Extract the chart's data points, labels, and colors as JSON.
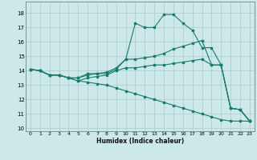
{
  "xlabel": "Humidex (Indice chaleur)",
  "ylabel": "",
  "bg_color": "#cce8e8",
  "grid_color": "#aacccc",
  "line_color": "#1a7a6e",
  "xlim": [
    -0.5,
    23.5
  ],
  "ylim": [
    9.8,
    18.8
  ],
  "yticks": [
    10,
    11,
    12,
    13,
    14,
    15,
    16,
    17,
    18
  ],
  "xticks": [
    0,
    1,
    2,
    3,
    4,
    5,
    6,
    7,
    8,
    9,
    10,
    11,
    12,
    13,
    14,
    15,
    16,
    17,
    18,
    19,
    20,
    21,
    22,
    23
  ],
  "series": [
    [
      14.1,
      14.0,
      13.7,
      13.7,
      13.5,
      13.5,
      13.7,
      13.8,
      13.8,
      14.1,
      14.8,
      17.3,
      17.0,
      17.0,
      17.9,
      17.9,
      17.3,
      16.8,
      15.6,
      15.6,
      14.4,
      11.4,
      11.3,
      10.5
    ],
    [
      14.1,
      14.0,
      13.7,
      13.7,
      13.5,
      13.5,
      13.8,
      13.8,
      13.9,
      14.2,
      14.8,
      14.8,
      14.9,
      15.0,
      15.2,
      15.5,
      15.7,
      15.9,
      16.1,
      14.4,
      14.4,
      11.4,
      11.3,
      10.5
    ],
    [
      14.1,
      14.0,
      13.7,
      13.7,
      13.5,
      13.3,
      13.5,
      13.6,
      13.7,
      14.0,
      14.2,
      14.2,
      14.3,
      14.4,
      14.4,
      14.5,
      14.6,
      14.7,
      14.8,
      14.4,
      14.4,
      11.4,
      11.3,
      10.5
    ],
    [
      14.1,
      14.0,
      13.7,
      13.7,
      13.5,
      13.3,
      13.2,
      13.1,
      13.0,
      12.8,
      12.6,
      12.4,
      12.2,
      12.0,
      11.8,
      11.6,
      11.4,
      11.2,
      11.0,
      10.8,
      10.6,
      10.5,
      10.5,
      10.5
    ]
  ]
}
